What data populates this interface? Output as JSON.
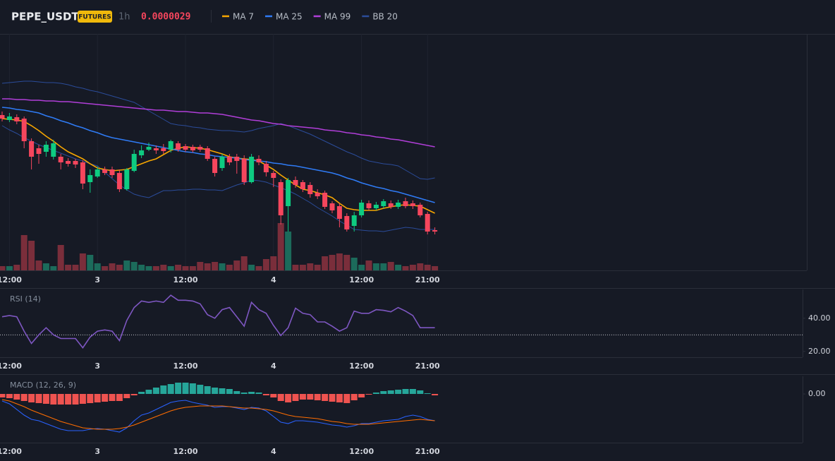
{
  "header": {
    "symbol": "PEPE_USDT",
    "badge": "FUTURES",
    "interval": "1h",
    "price": "0.0000029"
  },
  "chart_data": [
    {
      "type": "candlestick",
      "categories": [
        null,
        "12:00",
        null,
        null,
        null,
        null,
        null,
        null,
        null,
        null,
        null,
        null,
        null,
        "3",
        null,
        null,
        null,
        null,
        null,
        null,
        null,
        null,
        null,
        null,
        null,
        "12:00",
        null,
        null,
        null,
        null,
        null,
        null,
        null,
        null,
        null,
        null,
        null,
        "4",
        null,
        null,
        null,
        null,
        null,
        null,
        null,
        null,
        null,
        null,
        null,
        "12:00",
        null,
        null,
        null,
        null,
        null,
        null,
        null,
        null,
        "21:00",
        null
      ],
      "open": [
        3.065e-06,
        3.058e-06,
        3.062e-06,
        3.06e-06,
        3.028e-06,
        3.018e-06,
        3.013e-06,
        3.006e-06,
        3.006e-06,
        3e-06,
        3e-06,
        2.998e-06,
        2.97e-06,
        2.978e-06,
        2.988e-06,
        2.988e-06,
        2.983e-06,
        2.96e-06,
        2.986e-06,
        3.008e-06,
        3.016e-06,
        3.018e-06,
        3.018e-06,
        3.016e-06,
        3.025e-06,
        3.021e-06,
        3.02e-06,
        3.02e-06,
        3.018e-06,
        3.003e-06,
        2.99e-06,
        3.006e-06,
        3.006e-06,
        3.003e-06,
        2.97e-06,
        3.003e-06,
        2.996e-06,
        2.983e-06,
        2.97e-06,
        2.936e-06,
        2.973e-06,
        2.97e-06,
        2.966e-06,
        2.955e-06,
        2.955e-06,
        2.94e-06,
        2.936e-06,
        2.922e-06,
        2.908e-06,
        2.923e-06,
        2.94e-06,
        2.933e-06,
        2.936e-06,
        2.94e-06,
        2.935e-06,
        2.943e-06,
        2.94e-06,
        2.938e-06,
        2.925e-06,
        2.902e-06
      ],
      "high": [
        3.07e-06,
        3.068e-06,
        3.066e-06,
        3.063e-06,
        3.032e-06,
        3.023e-06,
        3.028e-06,
        3.03e-06,
        3.01e-06,
        3.004e-06,
        3.003e-06,
        3.001e-06,
        2.988e-06,
        2.992e-06,
        2.992e-06,
        2.992e-06,
        2.988e-06,
        2.99e-06,
        3.016e-06,
        3.022e-06,
        3.026e-06,
        3.022e-06,
        3.024e-06,
        3.03e-06,
        3.028e-06,
        3.024e-06,
        3.023e-06,
        3.023e-06,
        3.021e-06,
        3.006e-06,
        3.01e-06,
        3.01e-06,
        3.01e-06,
        3.008e-06,
        3.01e-06,
        3.008e-06,
        3e-06,
        2.986e-06,
        2.974e-06,
        2.976e-06,
        2.978e-06,
        2.973e-06,
        2.97e-06,
        2.96e-06,
        2.958e-06,
        2.943e-06,
        2.94e-06,
        2.926e-06,
        2.928e-06,
        2.945e-06,
        2.944e-06,
        2.942e-06,
        2.946e-06,
        2.944e-06,
        2.945e-06,
        2.948e-06,
        2.944e-06,
        2.941e-06,
        2.928e-06,
        2.906e-06
      ],
      "low": [
        3.056e-06,
        3.055e-06,
        3.052e-06,
        3.018e-06,
        2.988e-06,
        2.996e-06,
        3.006e-06,
        3.002e-06,
        2.988e-06,
        2.992e-06,
        2.99e-06,
        2.96e-06,
        2.955e-06,
        2.976e-06,
        2.98e-06,
        2.976e-06,
        2.956e-06,
        2.958e-06,
        2.984e-06,
        3.004e-06,
        3.014e-06,
        3.01e-06,
        3.01e-06,
        3.012e-06,
        3.013e-06,
        3.013e-06,
        3.012e-06,
        3.013e-06,
        3e-06,
        2.978e-06,
        2.986e-06,
        2.994e-06,
        2.982e-06,
        2.966e-06,
        2.968e-06,
        2.994e-06,
        2.978e-06,
        2.963e-06,
        2.91e-06,
        2.9e-06,
        2.962e-06,
        2.956e-06,
        2.948e-06,
        2.946e-06,
        2.932e-06,
        2.926e-06,
        2.906e-06,
        2.9e-06,
        2.9e-06,
        2.92e-06,
        2.93e-06,
        2.93e-06,
        2.933e-06,
        2.932e-06,
        2.932e-06,
        2.933e-06,
        2.932e-06,
        2.92e-06,
        2.896e-06,
        2.896e-06
      ],
      "close": [
        3.06e-06,
        3.063e-06,
        3.056e-06,
        3.028e-06,
        3.006e-06,
        3.01e-06,
        3.023e-06,
        3.025e-06,
        2.998e-06,
        2.996e-06,
        2.995e-06,
        2.968e-06,
        2.98e-06,
        2.988e-06,
        2.983e-06,
        2.98e-06,
        2.96e-06,
        2.988e-06,
        3.01e-06,
        3.015e-06,
        3.02e-06,
        3.015e-06,
        3.014e-06,
        3.028e-06,
        3.016e-06,
        3.016e-06,
        3.015e-06,
        3.016e-06,
        3.003e-06,
        2.983e-06,
        3.006e-06,
        2.998e-06,
        3e-06,
        2.97e-06,
        3.006e-06,
        2.998e-06,
        2.984e-06,
        2.976e-06,
        2.923e-06,
        2.973e-06,
        2.966e-06,
        2.96e-06,
        2.953e-06,
        2.95e-06,
        2.935e-06,
        2.93e-06,
        2.918e-06,
        2.903e-06,
        2.923e-06,
        2.941e-06,
        2.933e-06,
        2.938e-06,
        2.943e-06,
        2.935e-06,
        2.941e-06,
        2.936e-06,
        2.936e-06,
        2.923e-06,
        2.9e-06,
        2.9e-06
      ],
      "up_color": "#0ecb81",
      "down_color": "#f6465d",
      "volume": [
        6,
        6,
        8,
        50,
        42,
        14,
        10,
        6,
        36,
        8,
        8,
        24,
        22,
        10,
        6,
        10,
        8,
        14,
        12,
        8,
        6,
        6,
        8,
        6,
        8,
        6,
        6,
        12,
        10,
        12,
        10,
        8,
        14,
        20,
        8,
        6,
        16,
        20,
        67,
        55,
        8,
        8,
        10,
        8,
        20,
        22,
        24,
        22,
        18,
        8,
        14,
        10,
        10,
        12,
        8,
        6,
        8,
        10,
        8,
        6
      ],
      "volume_up_color": "#1c6b5b",
      "volume_down_color": "#7a2e3b",
      "vlim": [
        0,
        335
      ],
      "ylim": [
        2.845e-06,
        3.18e-06
      ],
      "series": [
        {
          "name": "MA 7",
          "color": "#f7a600",
          "values": [
            3.06e-06,
            3.059e-06,
            3.058e-06,
            3.056e-06,
            3.05e-06,
            3.043e-06,
            3.035e-06,
            3.028e-06,
            3.02e-06,
            3.013e-06,
            3.008e-06,
            3.003e-06,
            2.996e-06,
            2.99e-06,
            2.988e-06,
            2.986e-06,
            2.987e-06,
            2.988e-06,
            2.992e-06,
            2.996e-06,
            3e-06,
            3.003e-06,
            3.009e-06,
            3.015e-06,
            3.018e-06,
            3.02e-06,
            3.019e-06,
            3.018e-06,
            3.016e-06,
            3.013e-06,
            3.01e-06,
            3.006e-06,
            3.004e-06,
            3.003e-06,
            3.002e-06,
            3e-06,
            2.994e-06,
            2.988e-06,
            2.98e-06,
            2.973e-06,
            2.966e-06,
            2.96e-06,
            2.958e-06,
            2.955e-06,
            2.952e-06,
            2.948e-06,
            2.94e-06,
            2.933e-06,
            2.931e-06,
            2.93e-06,
            2.93e-06,
            2.93e-06,
            2.933e-06,
            2.935e-06,
            2.937e-06,
            2.938e-06,
            2.937e-06,
            2.936e-06,
            2.931e-06,
            2.926e-06
          ]
        },
        {
          "name": "MA 25",
          "color": "#2f7bf5",
          "values": [
            3.076e-06,
            3.075e-06,
            3.073e-06,
            3.072e-06,
            3.07e-06,
            3.068e-06,
            3.064e-06,
            3.061e-06,
            3.057e-06,
            3.054e-06,
            3.05e-06,
            3.047e-06,
            3.043e-06,
            3.04e-06,
            3.036e-06,
            3.033e-06,
            3.031e-06,
            3.029e-06,
            3.027e-06,
            3.025e-06,
            3.023e-06,
            3.021e-06,
            3.019e-06,
            3.017e-06,
            3.015e-06,
            3.013e-06,
            3.012e-06,
            3.01e-06,
            3.009e-06,
            3.007e-06,
            3.006e-06,
            3.005e-06,
            3.004e-06,
            3.002e-06,
            3.001e-06,
            3e-06,
            2.999e-06,
            2.997e-06,
            2.996e-06,
            2.994e-06,
            2.993e-06,
            2.991e-06,
            2.989e-06,
            2.987e-06,
            2.985e-06,
            2.983e-06,
            2.98e-06,
            2.976e-06,
            2.973e-06,
            2.969e-06,
            2.966e-06,
            2.963e-06,
            2.961e-06,
            2.958e-06,
            2.956e-06,
            2.953e-06,
            2.95e-06,
            2.947e-06,
            2.944e-06,
            2.941e-06
          ]
        },
        {
          "name": "MA 99",
          "color": "#b03ed8",
          "values": [
            3.088e-06,
            3.088e-06,
            3.087e-06,
            3.087e-06,
            3.086e-06,
            3.086e-06,
            3.085e-06,
            3.085e-06,
            3.084e-06,
            3.084e-06,
            3.083e-06,
            3.082e-06,
            3.081e-06,
            3.08e-06,
            3.079e-06,
            3.078e-06,
            3.077e-06,
            3.076e-06,
            3.075e-06,
            3.074e-06,
            3.073e-06,
            3.072e-06,
            3.072e-06,
            3.071e-06,
            3.07e-06,
            3.07e-06,
            3.069e-06,
            3.068e-06,
            3.068e-06,
            3.067e-06,
            3.066e-06,
            3.064e-06,
            3.062e-06,
            3.06e-06,
            3.058e-06,
            3.057e-06,
            3.055e-06,
            3.053e-06,
            3.052e-06,
            3.05e-06,
            3.049e-06,
            3.048e-06,
            3.047e-06,
            3.046e-06,
            3.044e-06,
            3.043e-06,
            3.042e-06,
            3.04e-06,
            3.039e-06,
            3.037e-06,
            3.036e-06,
            3.034e-06,
            3.033e-06,
            3.031e-06,
            3.03e-06,
            3.028e-06,
            3.026e-06,
            3.024e-06,
            3.022e-06,
            3.02e-06
          ]
        }
      ],
      "band": {
        "name": "BB 20",
        "color": "#2b4c9a",
        "upper": [
          3.11e-06,
          3.111e-06,
          3.112e-06,
          3.113e-06,
          3.113e-06,
          3.112e-06,
          3.111e-06,
          3.111e-06,
          3.11e-06,
          3.108e-06,
          3.105e-06,
          3.103e-06,
          3.1e-06,
          3.098e-06,
          3.095e-06,
          3.092e-06,
          3.089e-06,
          3.086e-06,
          3.083e-06,
          3.077e-06,
          3.071e-06,
          3.065e-06,
          3.059e-06,
          3.053e-06,
          3.051e-06,
          3.05e-06,
          3.048e-06,
          3.047e-06,
          3.045e-06,
          3.044e-06,
          3.043e-06,
          3.043e-06,
          3.042e-06,
          3.041e-06,
          3.043e-06,
          3.046e-06,
          3.048e-06,
          3.05e-06,
          3.053e-06,
          3.05e-06,
          3.046e-06,
          3.042e-06,
          3.038e-06,
          3.033e-06,
          3.028e-06,
          3.023e-06,
          3.018e-06,
          3.013e-06,
          3.009e-06,
          3.004e-06,
          3e-06,
          2.998e-06,
          2.996e-06,
          2.995e-06,
          2.993e-06,
          2.987e-06,
          2.981e-06,
          2.975e-06,
          2.974e-06,
          2.976e-06
        ],
        "lower": [
          3.05e-06,
          3.044e-06,
          3.039e-06,
          3.033e-06,
          3.028e-06,
          3.023e-06,
          3.019e-06,
          3.015e-06,
          3.011e-06,
          3.007e-06,
          3.003e-06,
          3e-06,
          2.996e-06,
          2.993e-06,
          2.984e-06,
          2.975e-06,
          2.966e-06,
          2.959e-06,
          2.953e-06,
          2.95e-06,
          2.948e-06,
          2.953e-06,
          2.958e-06,
          2.958e-06,
          2.959e-06,
          2.959e-06,
          2.96e-06,
          2.96e-06,
          2.959e-06,
          2.959e-06,
          2.958e-06,
          2.962e-06,
          2.966e-06,
          2.969e-06,
          2.973e-06,
          2.972e-06,
          2.97e-06,
          2.966e-06,
          2.962e-06,
          2.958e-06,
          2.953e-06,
          2.947e-06,
          2.941e-06,
          2.934e-06,
          2.928e-06,
          2.922e-06,
          2.915e-06,
          2.909e-06,
          2.903e-06,
          2.902e-06,
          2.901e-06,
          2.901e-06,
          2.9e-06,
          2.902e-06,
          2.904e-06,
          2.906e-06,
          2.905e-06,
          2.903e-06,
          2.903e-06,
          2.903e-06
        ]
      }
    },
    {
      "type": "line",
      "title": "RSI (14)",
      "color": "#7e57c2",
      "values": [
        40.9,
        41.7,
        40.9,
        32.2,
        24.8,
        30.0,
        34.3,
        30.0,
        27.8,
        27.8,
        27.8,
        22.2,
        28.7,
        32.2,
        33.0,
        32.2,
        26.5,
        38.7,
        46.5,
        50.4,
        49.6,
        50.4,
        49.6,
        53.9,
        50.9,
        50.9,
        50.4,
        48.7,
        42.2,
        40.0,
        45.2,
        46.5,
        40.9,
        35.2,
        49.6,
        45.2,
        43.0,
        35.7,
        29.6,
        34.3,
        46.1,
        43.0,
        42.2,
        37.8,
        37.8,
        35.2,
        32.2,
        34.3,
        44.3,
        43.0,
        43.0,
        45.2,
        44.8,
        43.9,
        46.5,
        44.3,
        41.7,
        34.3,
        34.3,
        34.3
      ],
      "ylim": [
        16.5,
        57.4
      ],
      "yticks": [
        {
          "value": 40,
          "label": "40.00"
        },
        {
          "value": 20,
          "label": "20.00"
        }
      ],
      "hline": 30
    },
    {
      "type": "macd",
      "title": "MACD (12, 26, 9)",
      "histogram": [
        -5e-10,
        -6e-10,
        -8e-10,
        -1e-09,
        -1.2e-09,
        -1.3e-09,
        -1.4e-09,
        -1.5e-09,
        -1.5e-09,
        -1.5e-09,
        -1.5e-09,
        -1.4e-09,
        -1.3e-09,
        -1.2e-09,
        -1.1e-09,
        -1e-09,
        -1e-09,
        -6e-10,
        -2e-10,
        3e-10,
        6e-10,
        9e-10,
        1.2e-09,
        1.4e-09,
        1.6e-09,
        1.6e-09,
        1.5e-09,
        1.3e-09,
        1.1e-09,
        9e-10,
        8e-10,
        7e-10,
        4e-10,
        2e-10,
        3e-10,
        2e-10,
        -2e-10,
        -5e-10,
        -1e-09,
        -1.2e-09,
        -1e-09,
        -8e-10,
        -8e-10,
        -9e-10,
        -1e-09,
        -1.1e-09,
        -1.2e-09,
        -1.3e-09,
        -9e-10,
        -5e-10,
        -1e-10,
        2e-10,
        4e-10,
        5e-10,
        6e-10,
        7e-10,
        7e-10,
        5e-10,
        1e-10,
        -2e-10
      ],
      "up_color": "#26a69a",
      "down_color": "#ef5350",
      "series": [
        {
          "color": "#2962ff",
          "values": [
            -1e-09,
            -1.4e-09,
            -2.2e-09,
            -3e-09,
            -3.6e-09,
            -3.8e-09,
            -4.2e-09,
            -4.6e-09,
            -5e-09,
            -5.2e-09,
            -5.2e-09,
            -5.2e-09,
            -5e-09,
            -4.9e-09,
            -5e-09,
            -5.2e-09,
            -5.4e-09,
            -4.8e-09,
            -3.8e-09,
            -3e-09,
            -2.7e-09,
            -2.2e-09,
            -1.7e-09,
            -1.2e-09,
            -1e-09,
            -9e-10,
            -1.2e-09,
            -1.4e-09,
            -1.6e-09,
            -1.9e-09,
            -1.8e-09,
            -1.8e-09,
            -2e-09,
            -2.2e-09,
            -1.9e-09,
            -2e-09,
            -2.4e-09,
            -3.2e-09,
            -4e-09,
            -4.2e-09,
            -3.8e-09,
            -3.8e-09,
            -3.9e-09,
            -4e-09,
            -4.2e-09,
            -4.4e-09,
            -4.5e-09,
            -4.7e-09,
            -4.5e-09,
            -4.2e-09,
            -4.2e-09,
            -4e-09,
            -3.8e-09,
            -3.7e-09,
            -3.6e-09,
            -3.2e-09,
            -3e-09,
            -3.2e-09,
            -3.6e-09,
            -3.8e-09
          ]
        },
        {
          "color": "#ff6d00",
          "values": [
            -8e-10,
            -1e-09,
            -1.4e-09,
            -1.8e-09,
            -2.3e-09,
            -2.7e-09,
            -3.1e-09,
            -3.5e-09,
            -3.9e-09,
            -4.2e-09,
            -4.5e-09,
            -4.8e-09,
            -4.9e-09,
            -5e-09,
            -5e-09,
            -5e-09,
            -4.9e-09,
            -4.7e-09,
            -4.4e-09,
            -4e-09,
            -3.6e-09,
            -3.2e-09,
            -2.8e-09,
            -2.4e-09,
            -2.1e-09,
            -1.9e-09,
            -1.8e-09,
            -1.7e-09,
            -1.7e-09,
            -1.7e-09,
            -1.7e-09,
            -1.8e-09,
            -1.9e-09,
            -2e-09,
            -2e-09,
            -2.1e-09,
            -2.2e-09,
            -2.4e-09,
            -2.7e-09,
            -3e-09,
            -3.2e-09,
            -3.3e-09,
            -3.4e-09,
            -3.5e-09,
            -3.7e-09,
            -3.9e-09,
            -4e-09,
            -4.2e-09,
            -4.3e-09,
            -4.3e-09,
            -4.3e-09,
            -4.2e-09,
            -4.1e-09,
            -4e-09,
            -3.9e-09,
            -3.8e-09,
            -3.7e-09,
            -3.6e-09,
            -3.7e-09,
            -3.8e-09
          ]
        }
      ],
      "ylim": [
        -6.9e-09,
        2.5e-09
      ],
      "yticks": [
        {
          "value": 0,
          "label": "0.00"
        }
      ]
    }
  ]
}
